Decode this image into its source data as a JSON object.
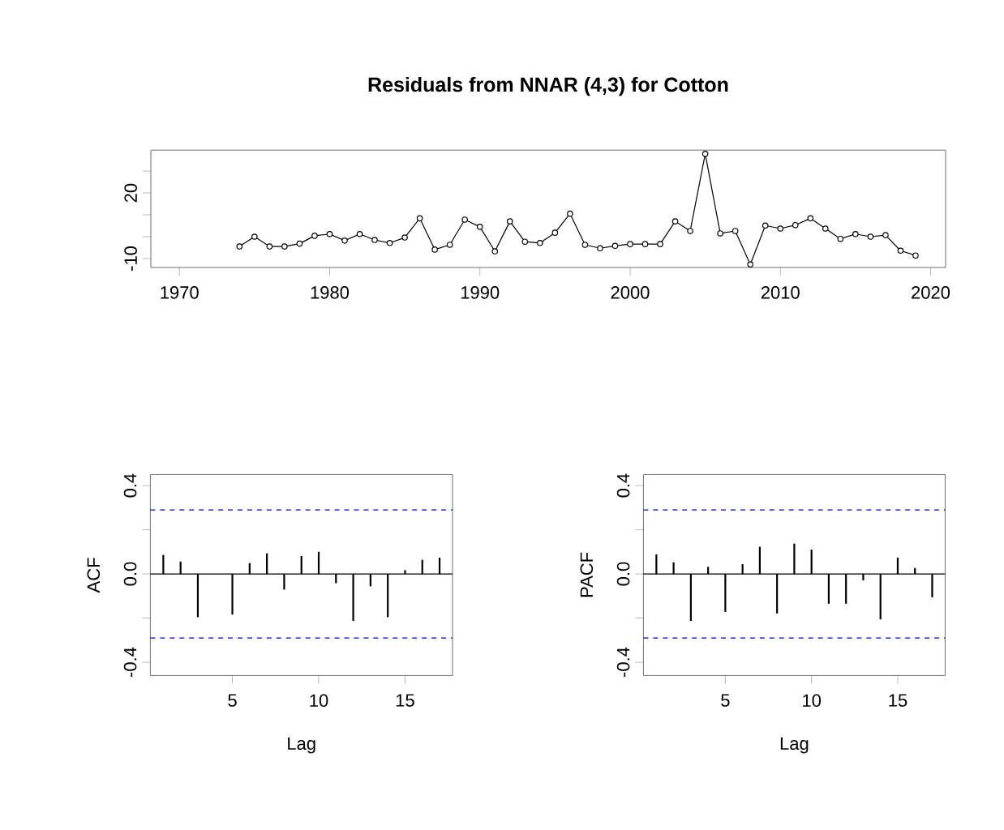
{
  "chart_data": [
    {
      "type": "line",
      "title": "Residuals from NNAR (4,3) for Cotton",
      "marker": "circle",
      "line_style": "solid",
      "x": [
        1974,
        1975,
        1976,
        1977,
        1978,
        1979,
        1980,
        1981,
        1982,
        1983,
        1984,
        1985,
        1986,
        1987,
        1988,
        1989,
        1990,
        1991,
        1992,
        1993,
        1994,
        1995,
        1996,
        1997,
        1998,
        1999,
        2000,
        2001,
        2002,
        2003,
        2004,
        2005,
        2006,
        2007,
        2008,
        2009,
        2010,
        2011,
        2012,
        2013,
        2014,
        2015,
        2016,
        2017,
        2018,
        2019
      ],
      "series": [
        {
          "color": "#000000",
          "values": [
            -4.5,
            0,
            -4.5,
            -4.5,
            -3.2,
            0.4,
            1.2,
            -1.8,
            1.2,
            -1.5,
            -2.9,
            -0.4,
            8.4,
            -5.9,
            -3.7,
            7.8,
            4.5,
            -6.7,
            7.0,
            -2.3,
            -2.9,
            1.8,
            10.5,
            -3.7,
            -5.3,
            -4.2,
            -3.4,
            -3.4,
            -3.4,
            7.0,
            2.6,
            37.9,
            1.5,
            2.6,
            -12.7,
            5.1,
            3.7,
            5.3,
            8.4,
            3.7,
            -1.0,
            1.2,
            0,
            0.7,
            -6.4,
            -8.6
          ]
        }
      ],
      "xlim": [
        1968.1,
        2021.0
      ],
      "ylim": [
        -14.1,
        39.6
      ],
      "xticks": [
        1970,
        1980,
        1990,
        2000,
        2010,
        2020
      ],
      "yticks": [
        -10,
        {
          "value": 0,
          "label": null
        },
        {
          "value": 10,
          "label": null
        },
        20,
        {
          "value": 30,
          "label": null
        }
      ]
    },
    {
      "type": "bar",
      "xlabel": "Lag",
      "ylabel": "ACF",
      "x": [
        1,
        2,
        3,
        4,
        5,
        6,
        7,
        8,
        9,
        10,
        11,
        12,
        13,
        14,
        15,
        16,
        17
      ],
      "series": [
        {
          "color": "#000000",
          "values": [
            0.086,
            0.056,
            -0.196,
            0,
            -0.184,
            0.049,
            0.093,
            -0.071,
            0.081,
            0.1,
            -0.042,
            -0.213,
            -0.056,
            -0.196,
            0.017,
            0.064,
            0.074
          ]
        }
      ],
      "xlim": [
        0.25,
        17.75
      ],
      "ylim": [
        -0.46,
        0.45
      ],
      "xticks": [
        5,
        10,
        15
      ],
      "yticks": [
        -0.4,
        {
          "value": -0.2,
          "label": null
        },
        {
          "value": 0,
          "label": "0.0"
        },
        {
          "value": 0.2,
          "label": null
        },
        0.4
      ],
      "ref_lines": [
        {
          "axis": "y",
          "value": 0.29,
          "color": "#0000cc",
          "line_style": "dashed"
        },
        {
          "axis": "y",
          "value": -0.29,
          "color": "#0000cc",
          "line_style": "dashed"
        }
      ]
    },
    {
      "type": "bar",
      "xlabel": "Lag",
      "ylabel": "PACF",
      "x": [
        1,
        2,
        3,
        4,
        5,
        6,
        7,
        8,
        9,
        10,
        11,
        12,
        13,
        14,
        15,
        16,
        17
      ],
      "series": [
        {
          "color": "#000000",
          "values": [
            0.088,
            0.052,
            -0.213,
            0.032,
            -0.172,
            0.044,
            0.123,
            -0.179,
            0.137,
            0.11,
            -0.135,
            -0.135,
            -0.029,
            -0.206,
            0.074,
            0.027,
            -0.106
          ]
        }
      ],
      "xlim": [
        0.25,
        17.75
      ],
      "ylim": [
        -0.46,
        0.45
      ],
      "xticks": [
        5,
        10,
        15
      ],
      "yticks": [
        -0.4,
        {
          "value": -0.2,
          "label": null
        },
        {
          "value": 0,
          "label": "0.0"
        },
        {
          "value": 0.2,
          "label": null
        },
        0.4
      ],
      "ref_lines": [
        {
          "axis": "y",
          "value": 0.29,
          "color": "#0000cc",
          "line_style": "dashed"
        },
        {
          "axis": "y",
          "value": -0.29,
          "color": "#0000cc",
          "line_style": "dashed"
        }
      ]
    }
  ]
}
